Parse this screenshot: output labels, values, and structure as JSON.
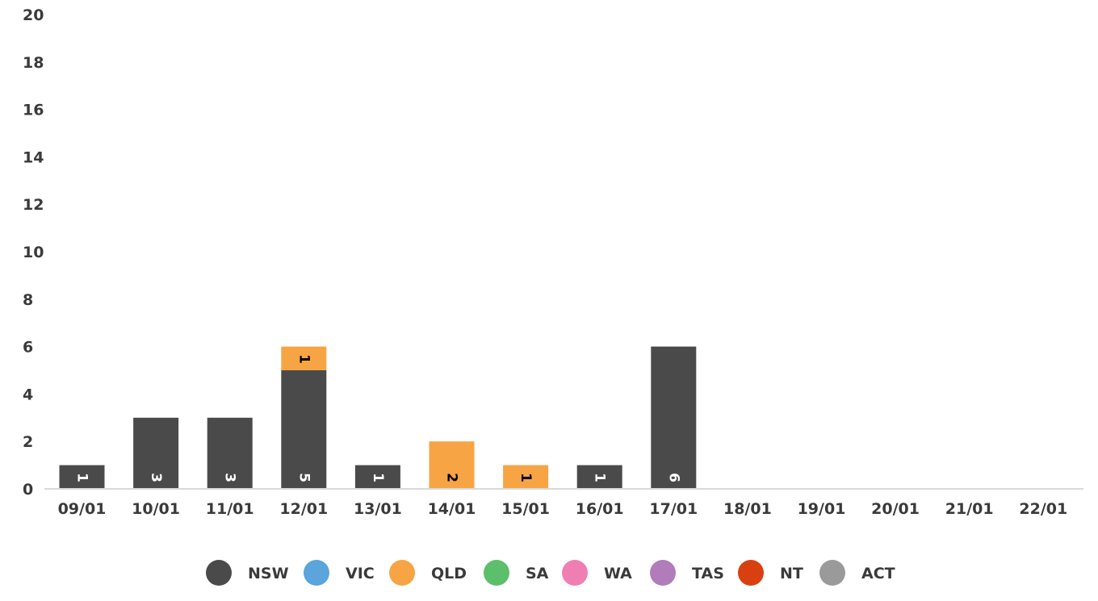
{
  "chart_data": {
    "type": "bar",
    "stacked": true,
    "categories": [
      "09/01",
      "10/01",
      "11/01",
      "12/01",
      "13/01",
      "14/01",
      "15/01",
      "16/01",
      "17/01",
      "18/01",
      "19/01",
      "20/01",
      "21/01",
      "22/01"
    ],
    "ylim": [
      0,
      20
    ],
    "yticks": [
      0,
      2,
      4,
      6,
      8,
      10,
      12,
      14,
      16,
      18,
      20
    ],
    "grid": false,
    "legend_position": "bottom",
    "series": [
      {
        "name": "NSW",
        "color": "#4a4a4a",
        "values": [
          1,
          3,
          3,
          5,
          1,
          0,
          0,
          1,
          6,
          0,
          0,
          0,
          0,
          0
        ]
      },
      {
        "name": "VIC",
        "color": "#5ba4dc",
        "values": [
          0,
          0,
          0,
          0,
          0,
          0,
          0,
          0,
          0,
          0,
          0,
          0,
          0,
          0
        ]
      },
      {
        "name": "QLD",
        "color": "#f7a444",
        "values": [
          0,
          0,
          0,
          1,
          0,
          2,
          1,
          0,
          0,
          0,
          0,
          0,
          0,
          0
        ]
      },
      {
        "name": "SA",
        "color": "#5cbf6b",
        "values": [
          0,
          0,
          0,
          0,
          0,
          0,
          0,
          0,
          0,
          0,
          0,
          0,
          0,
          0
        ]
      },
      {
        "name": "WA",
        "color": "#ef7fb3",
        "values": [
          0,
          0,
          0,
          0,
          0,
          0,
          0,
          0,
          0,
          0,
          0,
          0,
          0,
          0
        ]
      },
      {
        "name": "TAS",
        "color": "#b07cba",
        "values": [
          0,
          0,
          0,
          0,
          0,
          0,
          0,
          0,
          0,
          0,
          0,
          0,
          0,
          0
        ]
      },
      {
        "name": "NT",
        "color": "#d94010",
        "values": [
          0,
          0,
          0,
          0,
          0,
          0,
          0,
          0,
          0,
          0,
          0,
          0,
          0,
          0
        ]
      },
      {
        "name": "ACT",
        "color": "#9a9a9a",
        "values": [
          0,
          0,
          0,
          0,
          0,
          0,
          0,
          0,
          0,
          0,
          0,
          0,
          0,
          0
        ]
      }
    ]
  }
}
